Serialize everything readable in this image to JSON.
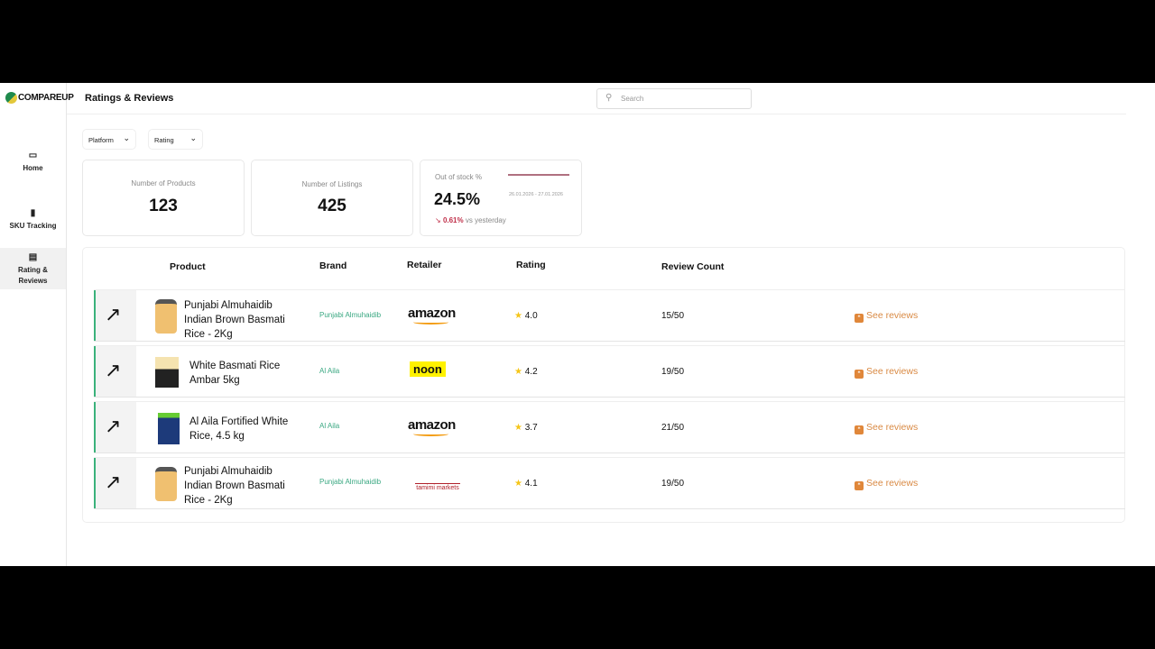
{
  "app": {
    "logo": "COMPAREUP",
    "page_title": "Ratings & Reviews"
  },
  "search": {
    "placeholder": "Search"
  },
  "sidebar": {
    "items": [
      {
        "label": "Home",
        "icon": "card-icon"
      },
      {
        "label": "SKU Tracking",
        "icon": "bar-chart-icon"
      },
      {
        "label": "Rating & Reviews",
        "icon": "document-icon",
        "active": true
      }
    ]
  },
  "filters": [
    {
      "label": "Platform"
    },
    {
      "label": "Rating"
    }
  ],
  "cards": {
    "products": {
      "label": "Number of Products",
      "value": "123"
    },
    "listings": {
      "label": "Number of Listings",
      "value": "425"
    },
    "oos": {
      "label": "Out of stock %",
      "value": "24.5%",
      "range": "26.01.2026 - 27.01.2026",
      "change": "0.61%",
      "change_suffix": "vs yesterday",
      "trend": "down",
      "color": "#c0304a"
    }
  },
  "table": {
    "headers": {
      "product": "Product",
      "brand": "Brand",
      "retailer": "Retailer",
      "rating": "Rating",
      "review_count": "Review Count"
    },
    "rows": [
      {
        "product": "Punjabi Almuhaidib Indian Brown Basmati Rice - 2Kg",
        "brand": "Punjabi Almuhaidib",
        "retailer": "amazon",
        "rating": "4.0",
        "review_count": "15/50",
        "action": "See reviews"
      },
      {
        "product": "White Basmati Rice Ambar 5kg",
        "brand": "Al Aila",
        "retailer": "noon",
        "rating": "4.2",
        "review_count": "19/50",
        "action": "See reviews"
      },
      {
        "product": "Al Aila Fortified White Rice, 4.5 kg",
        "brand": "Al Aila",
        "retailer": "amazon",
        "rating": "3.7",
        "review_count": "21/50",
        "action": "See reviews"
      },
      {
        "product": "Punjabi Almuhaidib Indian Brown Basmati Rice - 2Kg",
        "brand": "Punjabi Almuhaidib",
        "retailer": "tamimi markets",
        "rating": "4.1",
        "review_count": "19/50",
        "action": "See reviews"
      }
    ]
  },
  "colors": {
    "accent": "#3bb27b",
    "link": "#d98a44",
    "negative": "#c0304a"
  }
}
